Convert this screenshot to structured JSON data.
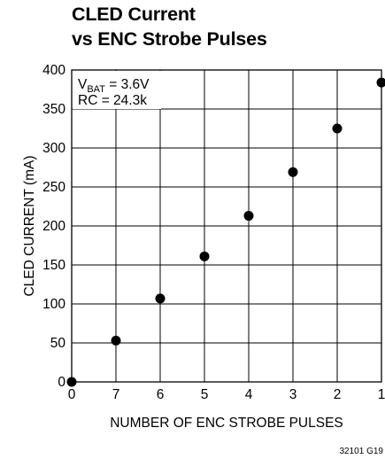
{
  "chart_data": {
    "type": "scatter",
    "title": [
      "CLED Current",
      "vs ENC Strobe Pulses"
    ],
    "xlabel": "NUMBER OF ENC STROBE PULSES",
    "ylabel": "CLED CURRENT (mA)",
    "x_tick_labels": [
      "0",
      "7",
      "6",
      "5",
      "4",
      "3",
      "2",
      "1"
    ],
    "y_ticks": [
      0,
      50,
      100,
      150,
      200,
      250,
      300,
      350,
      400
    ],
    "ylim": [
      0,
      400
    ],
    "grid": true,
    "annotation": {
      "line1_main": "V",
      "line1_sub": "BAT",
      "line1_rest": " = 3.6V",
      "line2": "RC = 24.3k"
    },
    "figure_code": "32101 G19",
    "x": [
      "0",
      "7",
      "6",
      "5",
      "4",
      "3",
      "2",
      "1"
    ],
    "y": [
      0,
      53,
      107,
      161,
      213,
      269,
      325,
      384
    ]
  }
}
